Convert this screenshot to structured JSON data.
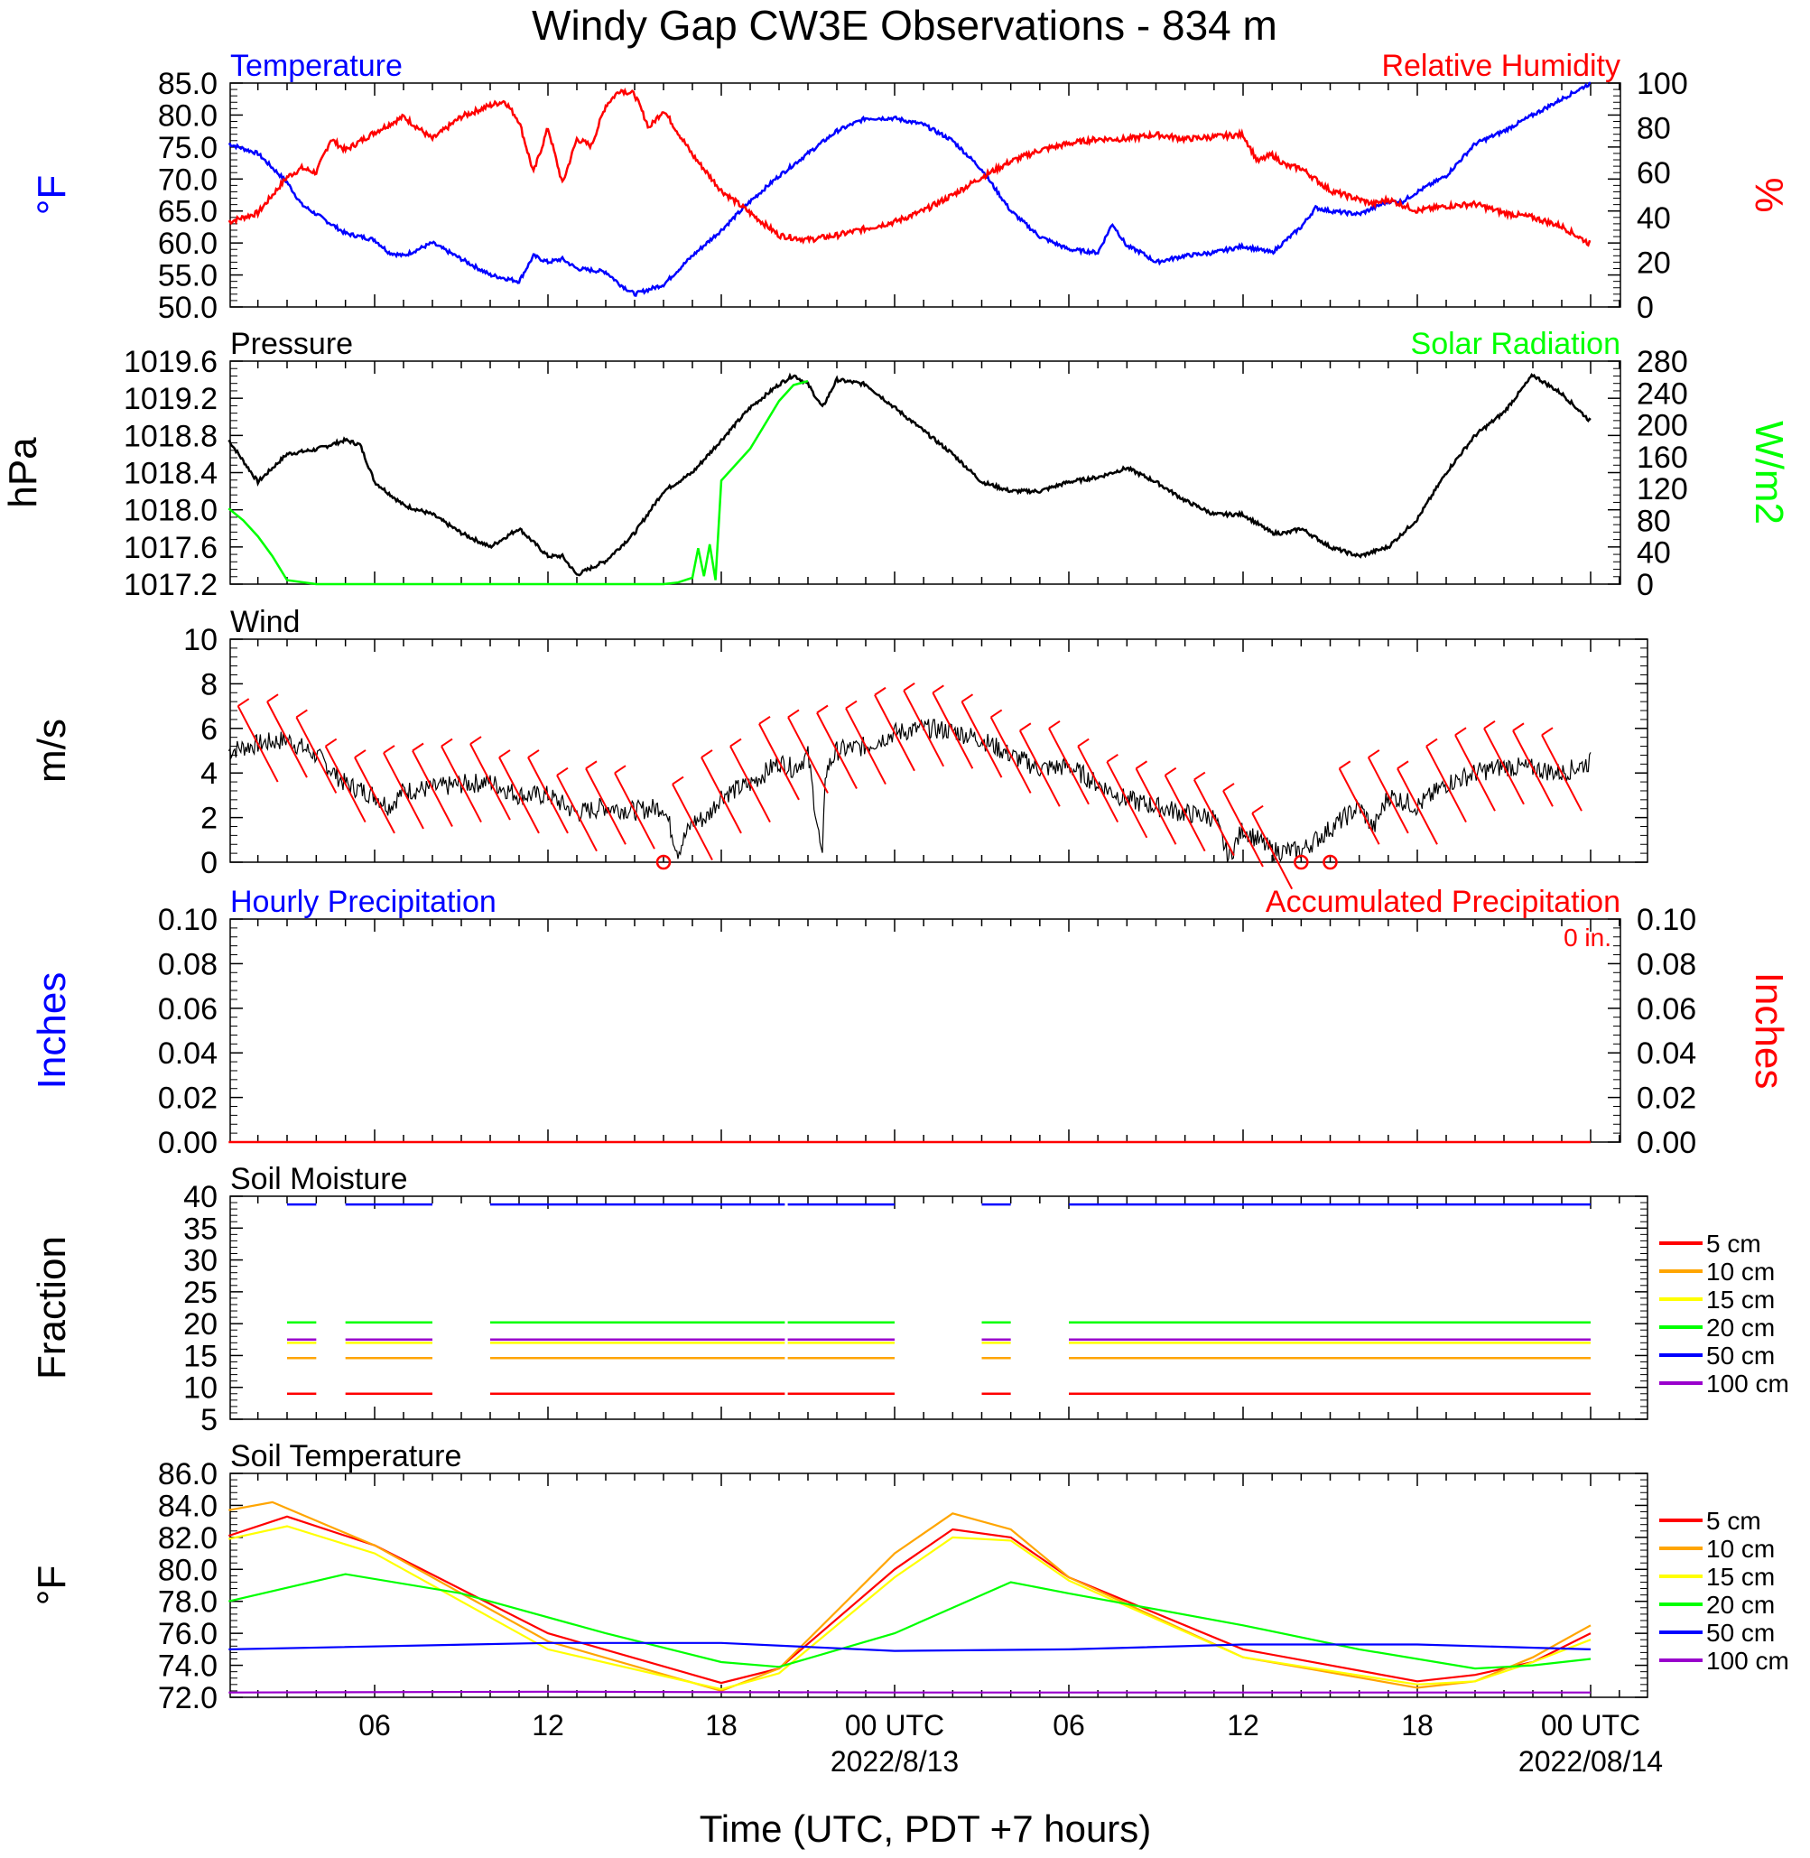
{
  "title": "Windy Gap CW3E Observations - 834 m",
  "x_axis": {
    "label": "Time (UTC, PDT +7 hours)",
    "tick_labels": [
      "06",
      "12",
      "18",
      "00 UTC",
      "06",
      "12",
      "18",
      "00 UTC"
    ],
    "date_labels": [
      "2022/8/13",
      "2022/08/14"
    ]
  },
  "chart_data": [
    {
      "id": "temp_rh",
      "type": "line",
      "title_left": "Temperature",
      "title_right": "Relative Humidity",
      "ylabel_left": "°F",
      "ylabel_right": "%",
      "ylim_left": [
        50,
        85
      ],
      "ylim_right": [
        0,
        100
      ],
      "yticks_left": [
        "85.0",
        "80.0",
        "75.0",
        "70.0",
        "65.0",
        "60.0",
        "55.0",
        "50.0"
      ],
      "yticks_right": [
        "100",
        "80",
        "60",
        "40",
        "20",
        "0"
      ],
      "xlim_hours": [
        1,
        48
      ],
      "colors": {
        "left": "#0000ff",
        "right": "#ff0000"
      },
      "series": [
        {
          "axis": "left",
          "hours": [
            1,
            2,
            3,
            3.5,
            4,
            4.5,
            5,
            6,
            6.5,
            7,
            8,
            9,
            10,
            11,
            11.5,
            12,
            12.5,
            13,
            14,
            14.5,
            15,
            16,
            17,
            18,
            19,
            20,
            21,
            22,
            23,
            24,
            25,
            26,
            27,
            28,
            29,
            30,
            31,
            31.5,
            32,
            32.5,
            33,
            34,
            35,
            36,
            37,
            38,
            38.5,
            39,
            40,
            41,
            41.5,
            42,
            43,
            44,
            45,
            46,
            47,
            48
          ],
          "values": [
            75.5,
            74,
            69.5,
            66,
            64.5,
            63,
            61.5,
            60.5,
            58.5,
            58,
            60,
            57.5,
            55,
            54,
            58,
            57,
            57.5,
            56,
            55.5,
            53.5,
            52,
            53.5,
            58,
            62,
            66.5,
            70.5,
            74,
            77.5,
            79.5,
            79.5,
            78.5,
            76,
            71.5,
            65,
            61,
            59,
            58.5,
            63,
            59.5,
            58.5,
            57,
            58,
            58.5,
            59.5,
            58.5,
            62.5,
            65.5,
            65,
            64.5,
            66.5,
            66.5,
            68,
            70.5,
            75.5,
            77.5,
            80,
            82.5,
            85
          ]
        },
        {
          "axis": "right",
          "hours": [
            1,
            2,
            3,
            3.5,
            4,
            4.5,
            5,
            6,
            7,
            8,
            9,
            10,
            10.5,
            11,
            11.5,
            12,
            12.5,
            13,
            13.5,
            14,
            14.5,
            15,
            15.5,
            16,
            17,
            18,
            19,
            20,
            21,
            22,
            23,
            24,
            25,
            26,
            27,
            28,
            29,
            30,
            31,
            32,
            33,
            34,
            35,
            36,
            36.5,
            37,
            37.5,
            38,
            39,
            40,
            40.5,
            41,
            42,
            43,
            44,
            45,
            46,
            47,
            48
          ],
          "values": [
            38,
            42,
            58,
            62,
            60,
            75,
            70,
            78,
            85,
            75,
            85,
            90,
            92,
            83,
            60,
            80,
            55,
            75,
            72,
            90,
            97,
            95,
            80,
            88,
            68,
            52,
            42,
            32,
            30,
            32,
            35,
            38,
            43,
            50,
            58,
            65,
            70,
            73,
            75,
            75,
            77,
            75,
            76,
            77,
            65,
            68,
            63,
            62,
            52,
            48,
            46,
            48,
            43,
            45,
            46,
            42,
            40,
            36,
            28
          ]
        }
      ]
    },
    {
      "id": "pressure_solar",
      "type": "line",
      "title_left": "Pressure",
      "title_right": "Solar Radiation",
      "ylabel_left": "hPa",
      "ylabel_right": "W/m2",
      "ylim_left": [
        1017.2,
        1019.6
      ],
      "ylim_right": [
        0,
        280
      ],
      "yticks_left": [
        "1019.6",
        "1019.2",
        "1018.8",
        "1018.4",
        "1018.0",
        "1017.6",
        "1017.2"
      ],
      "yticks_right": [
        "280",
        "240",
        "200",
        "160",
        "120",
        "80",
        "40",
        "0"
      ],
      "colors": {
        "left": "#000000",
        "right": "#00ff00"
      },
      "series": [
        {
          "axis": "left",
          "hours": [
            1,
            2,
            3,
            4,
            5,
            5.5,
            6,
            7,
            8,
            9,
            10,
            11,
            12,
            12.5,
            13,
            14,
            15,
            16,
            17,
            18,
            19,
            20,
            20.5,
            21,
            21.5,
            22,
            23,
            24,
            25,
            26,
            27,
            28,
            29,
            30,
            31,
            32,
            33,
            34,
            35,
            36,
            37,
            37.5,
            38,
            39,
            40,
            41,
            42,
            43,
            43.5,
            44,
            45,
            46,
            47,
            48
          ],
          "values": [
            1018.75,
            1018.3,
            1018.6,
            1018.65,
            1018.75,
            1018.7,
            1018.3,
            1018.05,
            1017.95,
            1017.75,
            1017.6,
            1017.8,
            1017.5,
            1017.5,
            1017.3,
            1017.45,
            1017.75,
            1018.2,
            1018.4,
            1018.75,
            1019.1,
            1019.35,
            1019.45,
            1019.35,
            1019.1,
            1019.4,
            1019.35,
            1019.1,
            1018.85,
            1018.6,
            1018.3,
            1018.2,
            1018.2,
            1018.3,
            1018.35,
            1018.45,
            1018.3,
            1018.1,
            1017.95,
            1017.95,
            1017.75,
            1017.75,
            1017.8,
            1017.6,
            1017.5,
            1017.6,
            1017.9,
            1018.4,
            1018.6,
            1018.8,
            1019.05,
            1019.45,
            1019.25,
            1018.95
          ]
        },
        {
          "axis": "right",
          "hours": [
            1,
            1.5,
            2,
            2.5,
            3,
            4,
            8,
            12,
            16,
            16.5,
            17,
            17.2,
            17.4,
            17.6,
            17.8,
            18,
            19,
            20,
            20.5,
            21
          ],
          "values": [
            95,
            80,
            60,
            35,
            5,
            0,
            0,
            0,
            0,
            2,
            8,
            45,
            10,
            50,
            5,
            130,
            170,
            230,
            250,
            255
          ]
        }
      ]
    },
    {
      "id": "wind",
      "type": "line",
      "title_left": "Wind",
      "ylabel_left": "m/s",
      "ylim_left": [
        0,
        10
      ],
      "yticks_left": [
        "10",
        "8",
        "6",
        "4",
        "2",
        "0"
      ],
      "colors": {
        "left": "#000000",
        "barbs": "#ff0000"
      },
      "series": [
        {
          "axis": "left",
          "name": "",
          "hours": [
            1,
            2,
            3,
            4,
            5,
            6,
            6.5,
            7,
            8,
            9,
            10,
            11,
            12,
            13,
            14,
            15,
            16,
            16.5,
            17,
            17.5,
            18,
            19,
            20,
            20.5,
            21,
            21.5,
            21.6,
            22,
            23,
            24,
            25,
            26,
            27,
            28,
            29,
            30,
            31,
            32,
            33,
            34,
            35,
            35.5,
            36,
            37,
            38,
            39,
            40,
            40.5,
            41,
            42,
            43,
            44,
            45,
            46,
            47,
            48
          ],
          "values": [
            5,
            5.3,
            5.5,
            4.8,
            3.5,
            3,
            2.5,
            3.2,
            3.3,
            3.5,
            3.6,
            3,
            3,
            2.2,
            2.5,
            2.3,
            2.5,
            0.5,
            1.8,
            2,
            3,
            3.5,
            4.5,
            4.2,
            4.8,
            0,
            4,
            5,
            5.2,
            5.8,
            6,
            5.9,
            5.5,
            4.8,
            4.2,
            4.3,
            3.5,
            2.8,
            2.5,
            2.2,
            2,
            0.2,
            1.5,
            0.5,
            0.5,
            1.5,
            2.5,
            1.5,
            3,
            2.5,
            3.5,
            4,
            4.3,
            4.2,
            4,
            4.5
          ]
        }
      ],
      "calm_markers_hours": [
        16,
        38,
        39
      ]
    },
    {
      "id": "precip",
      "type": "line",
      "title_left": "Hourly Precipitation",
      "title_right": "Accumulated Precipitation",
      "annotation": "0 in.",
      "ylabel_left": "Inches",
      "ylabel_right": "Inches",
      "ylim_left": [
        0,
        0.1
      ],
      "ylim_right": [
        0,
        0.1
      ],
      "yticks_left": [
        "0.10",
        "0.08",
        "0.06",
        "0.04",
        "0.02",
        "0.00"
      ],
      "yticks_right": [
        "0.10",
        "0.08",
        "0.06",
        "0.04",
        "0.02",
        "0.00"
      ],
      "colors": {
        "left": "#0000ff",
        "right": "#ff0000"
      },
      "series": [
        {
          "axis": "right",
          "hours": [
            1,
            48
          ],
          "values": [
            0,
            0
          ]
        }
      ]
    },
    {
      "id": "soil_moisture",
      "type": "line",
      "title_left": "Soil Moisture",
      "ylabel_left": "Fraction",
      "ylim_left": [
        5,
        40
      ],
      "yticks_left": [
        "40",
        "35",
        "30",
        "25",
        "20",
        "15",
        "10",
        "5"
      ],
      "segments_hours": [
        [
          3,
          4
        ],
        [
          5,
          8
        ],
        [
          10,
          20.2
        ],
        [
          20.3,
          24
        ],
        [
          27,
          28
        ],
        [
          30,
          48
        ]
      ],
      "series": [
        {
          "name": "5 cm",
          "color": "#ff0000",
          "value": 9
        },
        {
          "name": "10 cm",
          "color": "#ffa500",
          "value": 14.6
        },
        {
          "name": "15 cm",
          "color": "#ffff00",
          "value": 17
        },
        {
          "name": "20 cm",
          "color": "#00ff00",
          "value": 20.2
        },
        {
          "name": "50 cm",
          "color": "#0000ff",
          "value": 38.7
        },
        {
          "name": "100 cm",
          "color": "#9900cc",
          "value": 17.5
        }
      ]
    },
    {
      "id": "soil_temperature",
      "type": "line",
      "title_left": "Soil Temperature",
      "ylabel_left": "°F",
      "ylim_left": [
        72,
        86
      ],
      "yticks_left": [
        "86.0",
        "84.0",
        "82.0",
        "80.0",
        "78.0",
        "76.0",
        "74.0",
        "72.0"
      ],
      "series": [
        {
          "name": "5 cm",
          "color": "#ff0000",
          "hours": [
            1,
            3,
            6,
            12,
            18,
            20,
            24,
            26,
            28,
            30,
            36,
            42,
            44,
            46,
            48
          ],
          "values": [
            82.1,
            83.3,
            81.5,
            76.0,
            72.9,
            73.8,
            80.0,
            82.5,
            82.0,
            79.5,
            75.0,
            73.0,
            73.4,
            74.2,
            76.0
          ]
        },
        {
          "name": "10 cm",
          "color": "#ffa500",
          "hours": [
            1,
            2.5,
            6,
            12,
            18,
            20,
            24,
            26,
            28,
            30,
            36,
            42,
            44,
            46,
            48
          ],
          "values": [
            83.7,
            84.2,
            81.5,
            75.5,
            72.4,
            73.8,
            81.0,
            83.5,
            82.5,
            79.5,
            74.5,
            72.6,
            73.0,
            74.5,
            76.5
          ]
        },
        {
          "name": "15 cm",
          "color": "#ffff00",
          "hours": [
            1,
            3,
            6,
            12,
            18,
            20,
            24,
            26,
            28,
            30,
            36,
            42,
            44,
            46,
            48
          ],
          "values": [
            81.9,
            82.7,
            81.0,
            75.0,
            72.5,
            73.5,
            79.5,
            82.0,
            81.8,
            79.3,
            74.5,
            72.8,
            73.0,
            74.2,
            75.6
          ]
        },
        {
          "name": "20 cm",
          "color": "#00ff00",
          "hours": [
            1,
            5,
            9,
            14,
            18,
            20,
            24,
            28,
            30,
            36,
            40,
            44,
            46,
            48
          ],
          "values": [
            78.0,
            79.7,
            78.5,
            76.0,
            74.2,
            73.9,
            76.0,
            79.2,
            78.5,
            76.5,
            75.0,
            73.8,
            74.0,
            74.4
          ]
        },
        {
          "name": "50 cm",
          "color": "#0000ff",
          "hours": [
            1,
            12,
            18,
            24,
            30,
            36,
            42,
            48
          ],
          "values": [
            75.0,
            75.4,
            75.4,
            74.9,
            75.0,
            75.3,
            75.3,
            75.0
          ]
        },
        {
          "name": "100 cm",
          "color": "#9900cc",
          "hours": [
            1,
            12,
            24,
            36,
            48
          ],
          "values": [
            72.3,
            72.35,
            72.3,
            72.3,
            72.3
          ]
        }
      ]
    }
  ]
}
